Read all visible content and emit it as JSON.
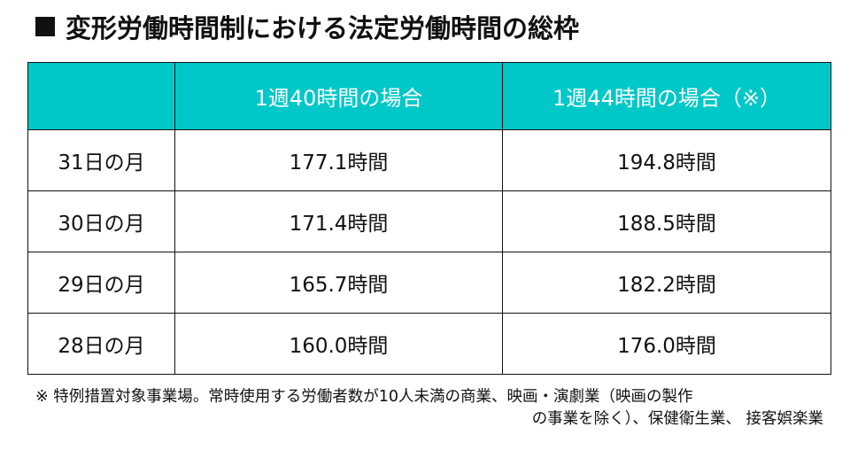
{
  "title": "変形労働時間制における法定労働時間の総枠",
  "table": {
    "headers": [
      "",
      "1週40時間の場合",
      "1週44時間の場合（※）"
    ],
    "rows": [
      {
        "label": "31日の月",
        "h40": "177.1時間",
        "h44": "194.8時間"
      },
      {
        "label": "30日の月",
        "h40": "171.4時間",
        "h44": "188.5時間"
      },
      {
        "label": "29日の月",
        "h40": "165.7時間",
        "h44": "182.2時間"
      },
      {
        "label": "28日の月",
        "h40": "160.0時間",
        "h44": "176.0時間"
      }
    ]
  },
  "note": {
    "line1": "※ 特例措置対象事業場。常時使用する労働者数が10人未満の商業、映画・演劇業（映画の製作",
    "line2": "の事業を除く）、保健衛生業、 接客娯楽業"
  },
  "colors": {
    "header_bg": "#00c8c8",
    "header_text": "#ffffff",
    "border": "#111111"
  }
}
